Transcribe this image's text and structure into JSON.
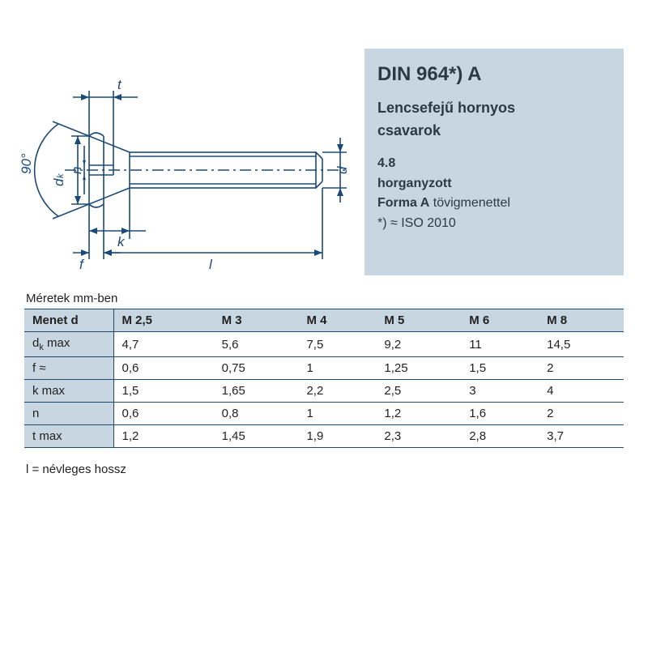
{
  "info": {
    "title": "DIN 964*) A",
    "subtitle_line1": "Lencsefejű hornyos",
    "subtitle_line2": "csavarok",
    "detail1_bold": "4.8",
    "detail2_bold": "horganyzott",
    "detail3_bold": "Forma A",
    "detail3_rest": " tövigmenettel",
    "detail4": "*) ≈ ISO 2010"
  },
  "diagram": {
    "labels": {
      "angle": "90°",
      "dk": "dk",
      "n": "n",
      "t": "t",
      "f": "f",
      "k": "k",
      "l": "l",
      "d": "d"
    },
    "stroke": "#1c4a78",
    "stroke_width": 1.6
  },
  "table": {
    "caption": "Méretek mm-ben",
    "header_first": "Menet d",
    "columns": [
      "M 2,5",
      "M 3",
      "M 4",
      "M 5",
      "M 6",
      "M 8"
    ],
    "rows": [
      {
        "label_html": "d<span class='sub'>k</span> max",
        "cells": [
          "4,7",
          "5,6",
          "7,5",
          "9,2",
          "11",
          "14,5"
        ]
      },
      {
        "label_html": "f ≈",
        "cells": [
          "0,6",
          "0,75",
          "1",
          "1,25",
          "1,5",
          "2"
        ]
      },
      {
        "label_html": "k max",
        "cells": [
          "1,5",
          "1,65",
          "2,2",
          "2,5",
          "3",
          "4"
        ]
      },
      {
        "label_html": "n",
        "cells": [
          "0,6",
          "0,8",
          "1",
          "1,2",
          "1,6",
          "2"
        ]
      },
      {
        "label_html": "t max",
        "cells": [
          "1,2",
          "1,45",
          "1,9",
          "2,3",
          "2,8",
          "3,7"
        ]
      }
    ],
    "footnote": "l = névleges hossz"
  },
  "colors": {
    "panel_bg": "#c7d6e0",
    "border": "#1f4a6a",
    "text": "#222222"
  }
}
